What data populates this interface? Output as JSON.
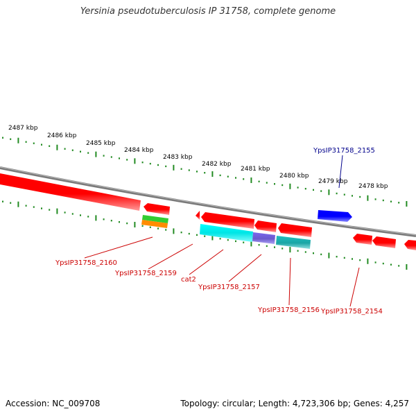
{
  "title": "Yersinia pseudotuberculosis IP 31758, complete genome",
  "footer": {
    "accession": "Accession: NC_009708",
    "summary": "Topology: circular; Length: 4,723,306 bp; Genes: 4,257"
  },
  "scale_ticks": [
    "2487 kbp",
    "2486 kbp",
    "2485 kbp",
    "2484 kbp",
    "2483 kbp",
    "2482 kbp",
    "2481 kbp",
    "2480 kbp",
    "2479 kbp",
    "2478 kbp"
  ],
  "genes_above": [
    {
      "name": "YpsIP31758_2155",
      "color": "#00008b"
    }
  ],
  "genes_below": [
    {
      "name": "YpsIP31758_2160",
      "color": "#cc0000"
    },
    {
      "name": "YpsIP31758_2159",
      "color": "#cc0000"
    },
    {
      "name": "cat2",
      "color": "#cc0000"
    },
    {
      "name": "YpsIP31758_2157",
      "color": "#cc0000"
    },
    {
      "name": "YpsIP31758_2156",
      "color": "#cc0000"
    },
    {
      "name": "YpsIP31758_2154",
      "color": "#cc0000"
    }
  ],
  "colors": {
    "backbone": "#888888",
    "scale_ticks": "#228b22",
    "cds_red": "#ff0000",
    "cds_blue": "#0000ff",
    "cds_cyan": "#00e5e5",
    "cds_purple": "#7b68ee",
    "cds_teal": "#20b2aa",
    "rna_green": "#32cd32",
    "rna_orange": "#ff8c00"
  }
}
